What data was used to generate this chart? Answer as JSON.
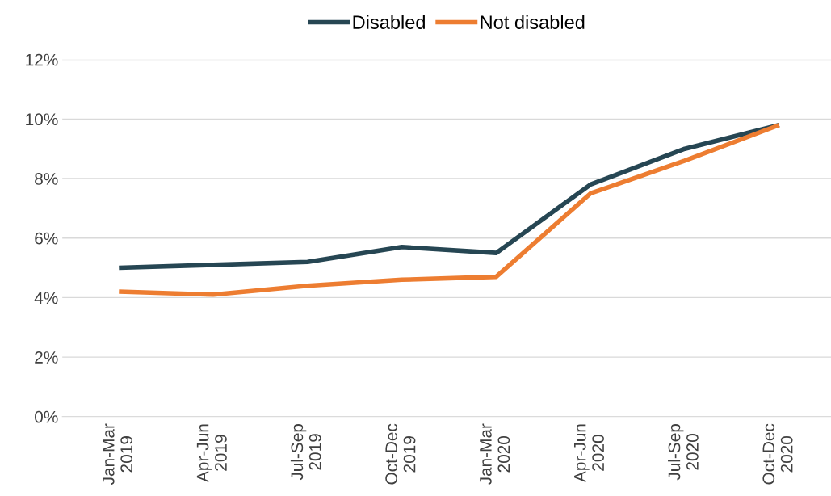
{
  "chart_data": {
    "type": "line",
    "categories": [
      "Jan-Mar\n2019",
      "Apr-Jun\n2019",
      "Jul-Sep\n2019",
      "Oct-Dec\n2019",
      "Jan-Mar\n2020",
      "Apr-Jun\n2020",
      "Jul-Sep\n2020",
      "Oct-Dec\n2020"
    ],
    "series": [
      {
        "name": "Disabled",
        "color": "#264653",
        "values": [
          5.0,
          5.1,
          5.2,
          5.7,
          5.5,
          7.8,
          9.0,
          9.8
        ]
      },
      {
        "name": "Not disabled",
        "color": "#ed7d31",
        "values": [
          4.2,
          4.1,
          4.4,
          4.6,
          4.7,
          7.5,
          8.6,
          9.8
        ]
      }
    ],
    "ylim": [
      0,
      12
    ],
    "yticks": [
      {
        "value": 0,
        "label": "0%"
      },
      {
        "value": 2,
        "label": "2%"
      },
      {
        "value": 4,
        "label": "4%"
      },
      {
        "value": 6,
        "label": "6%"
      },
      {
        "value": 8,
        "label": "8%"
      },
      {
        "value": 10,
        "label": "10%"
      },
      {
        "value": 12,
        "label": "12%"
      }
    ],
    "grid": "y",
    "legend": "top",
    "marker": "none",
    "line_style": "solid"
  }
}
